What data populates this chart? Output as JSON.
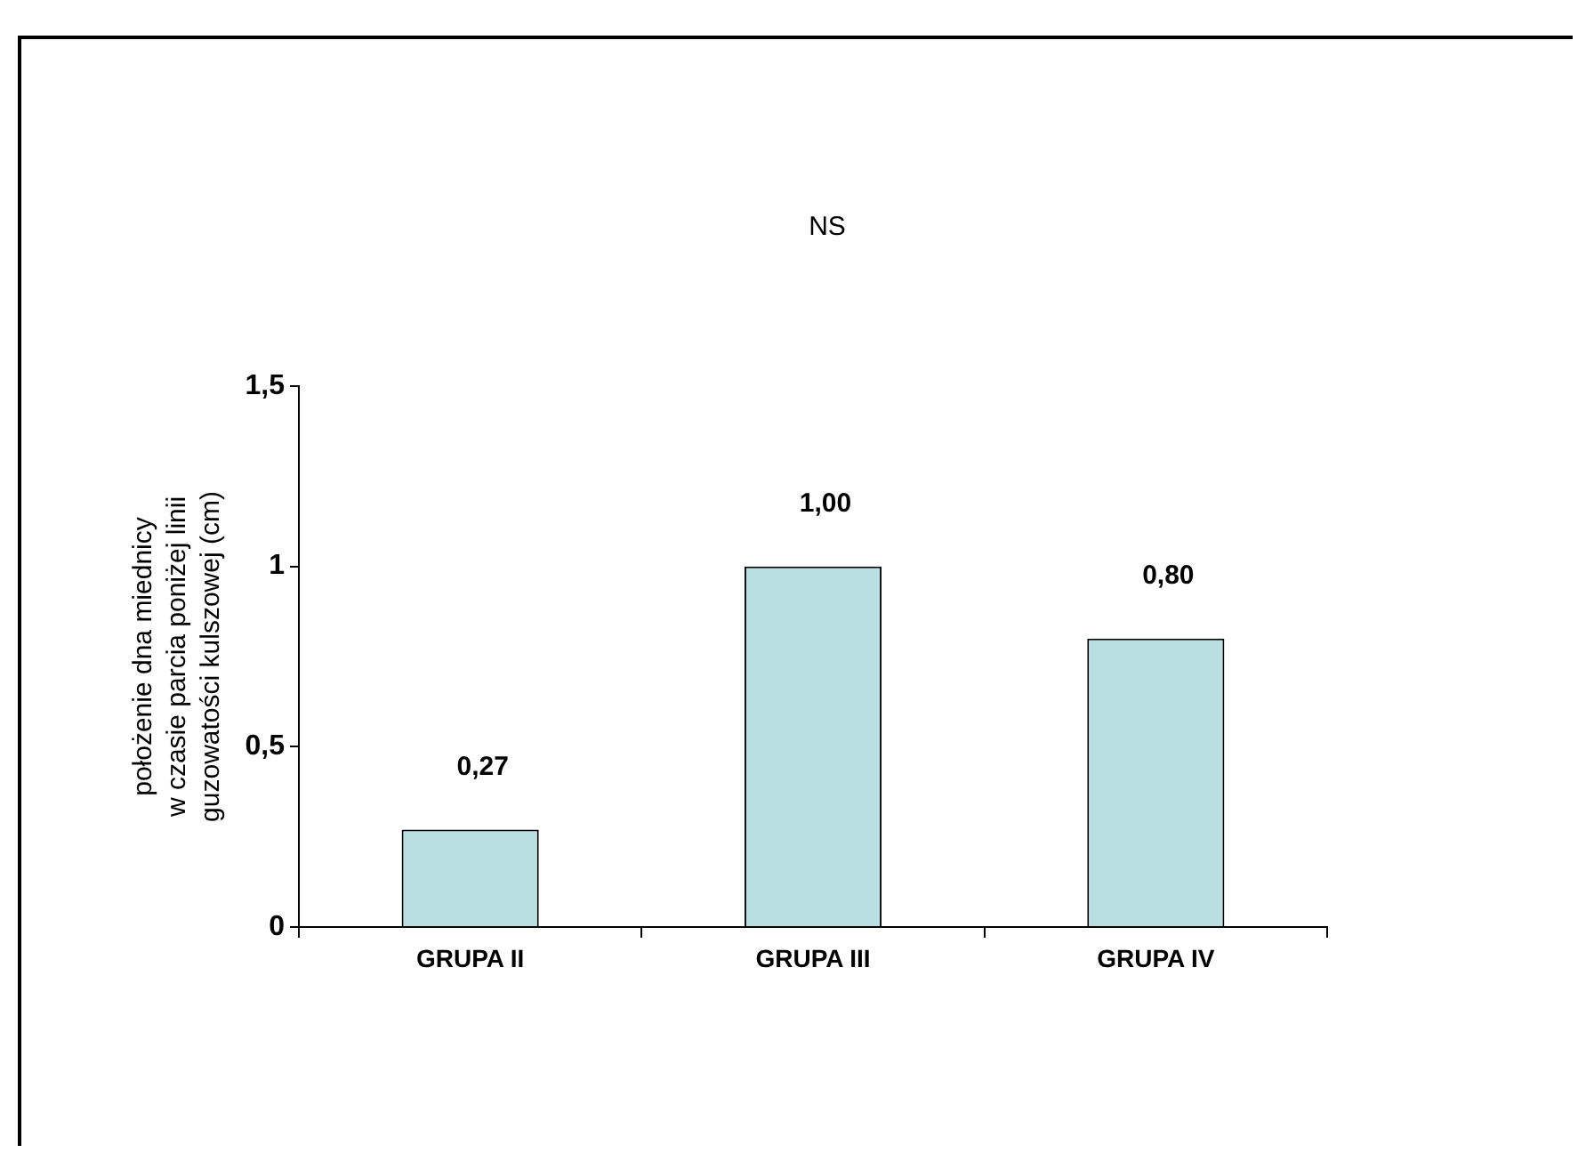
{
  "chart_data": {
    "type": "bar",
    "annotations": [
      "NS"
    ],
    "ylabel": "położenie dna miednicy\nw czasie parcia poniżej linii\nguzowatości kulszowej (cm)",
    "categories": [
      "GRUPA II",
      "GRUPA III",
      "GRUPA IV"
    ],
    "values": [
      0.27,
      1.0,
      0.8
    ],
    "value_labels": [
      "0,27",
      "1,00",
      "0,80"
    ],
    "color": "#b9dfe3",
    "ylim": [
      0,
      1.5
    ],
    "yticks": [
      0,
      {
        "value": 0.5,
        "label": "0,5"
      },
      1,
      {
        "value": 1.5,
        "label": "1,5"
      }
    ],
    "grid": false,
    "legend": false
  }
}
